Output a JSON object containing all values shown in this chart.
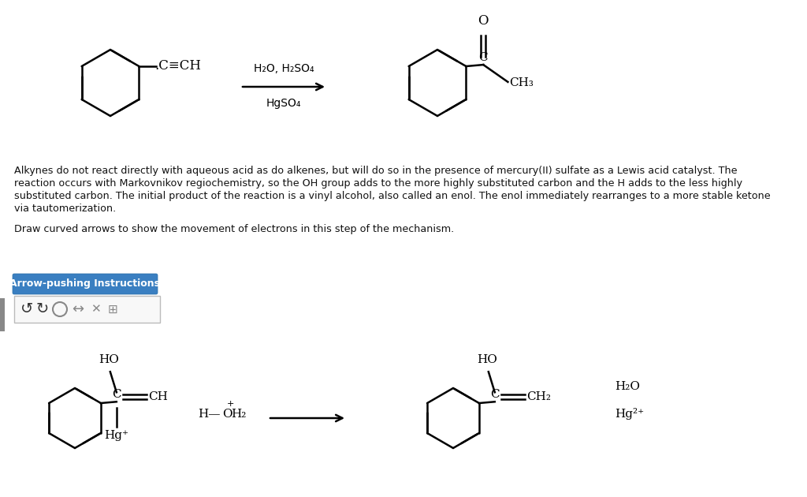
{
  "bg_color": "#ffffff",
  "body_text_line1": "Alkynes do not react directly with aqueous acid as do alkenes, but will do so in the presence of mercury(II) sulfate as a Lewis acid catalyst. The",
  "body_text_line2": "reaction occurs with Markovnikov regiochemistry, so the OH group adds to the more highly substituted carbon and the H adds to the less highly",
  "body_text_line3": "substituted carbon. The initial product of the reaction is a vinyl alcohol, also called an enol. The enol immediately rearranges to a more stable ketone",
  "body_text_line4": "via tautomerization.",
  "draw_text": "Draw curved arrows to show the movement of electrons in this step of the mechanism.",
  "button_text": "Arrow-pushing Instructions",
  "button_color": "#3a7fc1",
  "button_text_color": "#ffffff"
}
